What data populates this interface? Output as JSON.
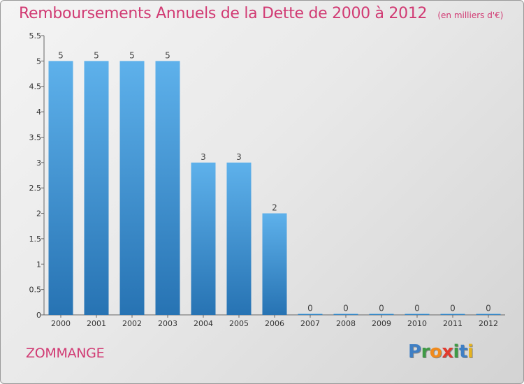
{
  "chart_data": {
    "type": "bar",
    "title": "Remboursements Annuels de la Dette de 2000 à 2012",
    "subtitle": "(en milliers d'€)",
    "categories": [
      "2000",
      "2001",
      "2002",
      "2003",
      "2004",
      "2005",
      "2006",
      "2007",
      "2008",
      "2009",
      "2010",
      "2011",
      "2012"
    ],
    "values": [
      5,
      5,
      5,
      5,
      3,
      3,
      2,
      0,
      0,
      0,
      0,
      0,
      0
    ],
    "data_labels": [
      "5",
      "5",
      "5",
      "5",
      "3",
      "3",
      "2",
      "0",
      "0",
      "0",
      "0",
      "0",
      "0"
    ],
    "ylim": [
      0,
      5.5
    ],
    "yticks": [
      "0",
      "0.5",
      "1",
      "1.5",
      "2",
      "2.5",
      "3",
      "3.5",
      "4",
      "4.5",
      "5",
      "5.5"
    ],
    "xlabel": "",
    "ylabel": "",
    "grid": false,
    "legend": "none",
    "bar_color_top": "#5eb1eb",
    "bar_color_bottom": "#2773b3"
  },
  "footer": {
    "commune": "ZOMMANGE",
    "logo_letters": [
      {
        "char": "P",
        "color": "#3f7fc4"
      },
      {
        "char": "r",
        "color": "#3f9a45"
      },
      {
        "char": "o",
        "color": "#f08a1c"
      },
      {
        "char": "x",
        "color": "#e23a2e"
      },
      {
        "char": "i",
        "color": "#3f9a45"
      },
      {
        "char": "t",
        "color": "#3f7fc4"
      },
      {
        "char": "i",
        "color": "#e6b31e"
      }
    ]
  }
}
